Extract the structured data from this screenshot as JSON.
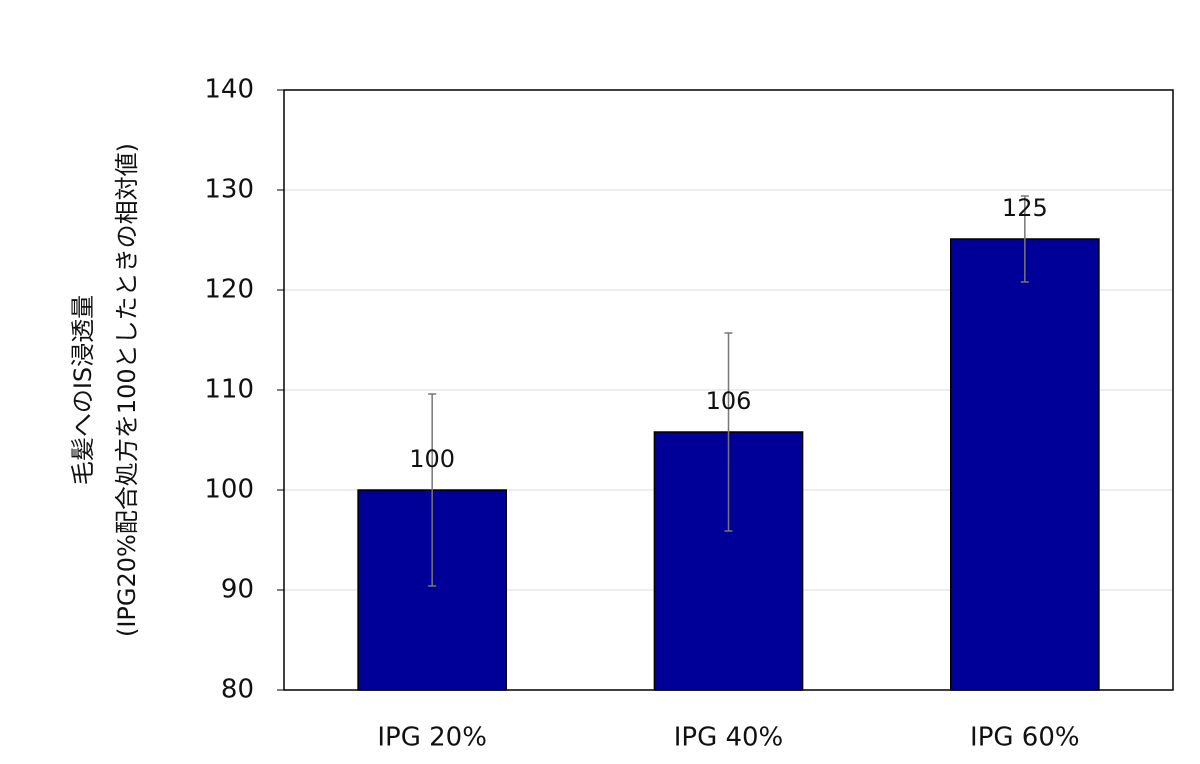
{
  "chart_data": {
    "type": "bar",
    "ylabel": [
      "毛髪へのIS浸透量",
      "(IPG20%配合処方を100としたときの相対値)"
    ],
    "categories": [
      "IPG 20%",
      "IPG 40%",
      "IPG 60%"
    ],
    "values": [
      100,
      105.8,
      125.1
    ],
    "value_labels": [
      "100",
      "106",
      "125"
    ],
    "errors": [
      9.6,
      9.9,
      4.3
    ],
    "color": "#000099",
    "ylim": [
      80,
      140
    ],
    "yticks": [
      80,
      90,
      100,
      110,
      120,
      130,
      140
    ],
    "grid": true
  }
}
